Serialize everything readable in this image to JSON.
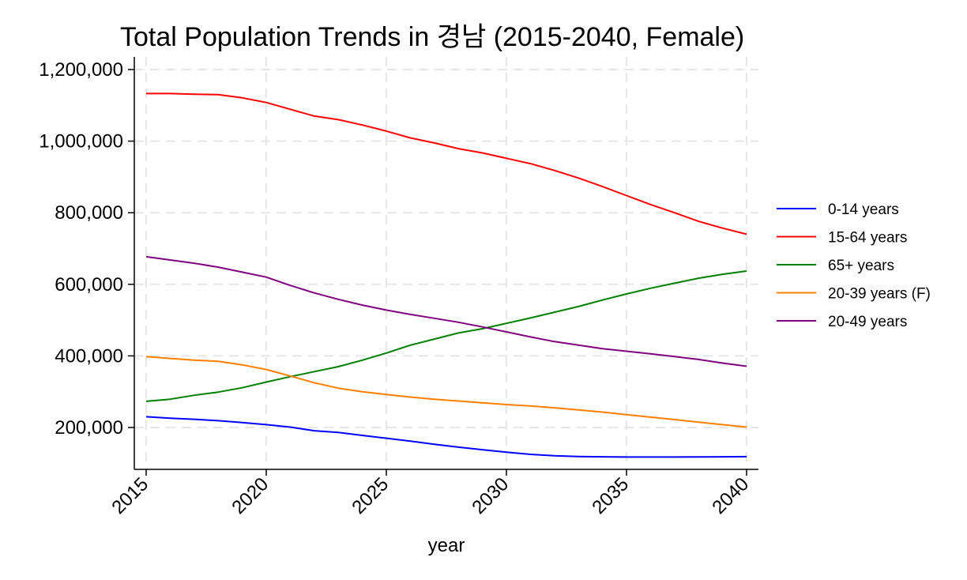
{
  "chart_data": {
    "type": "line",
    "title": "Total Population Trends in 경남 (2015-2040, Female)",
    "xlabel": "year",
    "ylabel": "",
    "xlim": [
      2015,
      2040
    ],
    "ylim": [
      100000,
      1240000
    ],
    "grid": true,
    "legend_position": "right",
    "x_ticks": [
      2015,
      2020,
      2025,
      2030,
      2035,
      2040
    ],
    "x_tick_labels": [
      "2015",
      "2020",
      "2025",
      "2030",
      "2035",
      "2040"
    ],
    "y_ticks": [
      200000,
      400000,
      600000,
      800000,
      1000000,
      1200000
    ],
    "y_tick_labels": [
      "200,000",
      "400,000",
      "600,000",
      "800,000",
      "1,000,000",
      "1,200,000"
    ],
    "x": [
      2015,
      2016,
      2017,
      2018,
      2019,
      2020,
      2021,
      2022,
      2023,
      2024,
      2025,
      2026,
      2027,
      2028,
      2029,
      2030,
      2031,
      2032,
      2033,
      2034,
      2035,
      2036,
      2037,
      2038,
      2039,
      2040
    ],
    "series": [
      {
        "name": "0-14 years",
        "color": "#0000ff",
        "values": [
          230000,
          226000,
          223000,
          219000,
          214000,
          208000,
          201000,
          191000,
          186000,
          178000,
          170000,
          162000,
          153000,
          145000,
          138000,
          131000,
          125000,
          121000,
          119000,
          118000,
          117500,
          117500,
          117500,
          117700,
          118000,
          118500
        ]
      },
      {
        "name": "15-64 years",
        "color": "#ff0000",
        "values": [
          1133000,
          1133000,
          1131000,
          1130000,
          1121000,
          1108000,
          1089000,
          1070000,
          1060000,
          1045000,
          1028000,
          1009000,
          995000,
          979000,
          967000,
          952000,
          937000,
          918000,
          897000,
          873000,
          848000,
          823000,
          800000,
          776000,
          757000,
          740000
        ]
      },
      {
        "name": "65+ years",
        "color": "#008000",
        "values": [
          273000,
          279000,
          290000,
          299000,
          311000,
          327000,
          342000,
          356000,
          370000,
          388000,
          408000,
          430000,
          447000,
          464000,
          476000,
          491000,
          506000,
          522000,
          538000,
          556000,
          573000,
          589000,
          603000,
          617000,
          628000,
          637000
        ]
      },
      {
        "name": "20-39 years (F)",
        "color": "#ff7f00",
        "values": [
          398000,
          393000,
          388000,
          385000,
          375000,
          362000,
          344000,
          325000,
          310000,
          300000,
          292000,
          285000,
          279000,
          274000,
          269000,
          264000,
          260000,
          255000,
          249000,
          243000,
          236000,
          229000,
          222000,
          215000,
          208000,
          201000
        ]
      },
      {
        "name": "20-49 years",
        "color": "#800080",
        "values": [
          677000,
          668000,
          659000,
          648000,
          634000,
          620000,
          597000,
          576000,
          558000,
          542000,
          528000,
          516000,
          505000,
          494000,
          481000,
          467000,
          453000,
          440000,
          430000,
          420000,
          413000,
          406000,
          398000,
          390000,
          380000,
          371000
        ]
      }
    ]
  }
}
